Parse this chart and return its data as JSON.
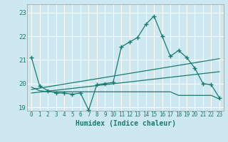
{
  "title": "",
  "xlabel": "Humidex (Indice chaleur)",
  "ylabel": "",
  "background_color": "#cde8f0",
  "line_color": "#1a7a6e",
  "grid_color": "#ffffff",
  "xlim": [
    -0.5,
    23.5
  ],
  "ylim": [
    18.85,
    23.35
  ],
  "yticks": [
    19,
    20,
    21,
    22,
    23
  ],
  "xticks": [
    0,
    1,
    2,
    3,
    4,
    5,
    6,
    7,
    8,
    9,
    10,
    11,
    12,
    13,
    14,
    15,
    16,
    17,
    18,
    19,
    20,
    21,
    22,
    23
  ],
  "line1_x": [
    0,
    1,
    2,
    3,
    4,
    5,
    6,
    7,
    8,
    9,
    10,
    11,
    12,
    13,
    14,
    15,
    16,
    17,
    18,
    19,
    20,
    21,
    22,
    23
  ],
  "line1_y": [
    21.1,
    19.9,
    19.7,
    19.6,
    19.6,
    19.55,
    19.6,
    18.88,
    19.95,
    20.0,
    20.05,
    21.55,
    21.75,
    21.95,
    22.5,
    22.85,
    22.0,
    21.15,
    21.4,
    21.1,
    20.65,
    20.0,
    19.95,
    19.4
  ],
  "line2_x": [
    0,
    1,
    2,
    3,
    4,
    5,
    6,
    7,
    8,
    9,
    10,
    11,
    12,
    13,
    14,
    15,
    16,
    17,
    18,
    19,
    20,
    21,
    22,
    23
  ],
  "line2_y": [
    19.85,
    19.7,
    19.65,
    19.65,
    19.65,
    19.65,
    19.65,
    19.65,
    19.65,
    19.65,
    19.65,
    19.65,
    19.65,
    19.65,
    19.65,
    19.65,
    19.65,
    19.65,
    19.5,
    19.5,
    19.5,
    19.5,
    19.5,
    19.35
  ],
  "line3_x": [
    0,
    23
  ],
  "line3_y": [
    19.75,
    21.05
  ],
  "line4_x": [
    0,
    23
  ],
  "line4_y": [
    19.6,
    20.5
  ]
}
